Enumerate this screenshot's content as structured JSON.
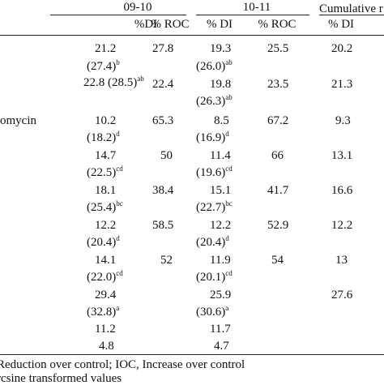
{
  "table": {
    "groups": [
      {
        "label": "09-10"
      },
      {
        "label": "10-11"
      },
      {
        "label": "Cumulative r"
      }
    ],
    "subheaders": [
      "%DI",
      "% ROC",
      "% DI",
      "% ROC",
      "% DI"
    ],
    "row_labels": [
      "omycin"
    ],
    "cells": {
      "r1": {
        "di1": "21.2",
        "roc1": "27.8",
        "di2": "19.3",
        "roc2": "25.5",
        "cum": "20.2"
      },
      "r1t": {
        "di1": "(27.4)",
        "di1_sup": "b",
        "di2": "(26.0)",
        "di2_sup": "ab"
      },
      "r2": {
        "di1": "22.8 (28.5)",
        "di1_sup": "ab",
        "roc1": "22.4",
        "di2": "19.8",
        "roc2": "23.5",
        "cum": "21.3"
      },
      "r2t": {
        "di2": "(26.3)",
        "di2_sup": "ab"
      },
      "r3": {
        "di1": "10.2",
        "roc1": "65.3",
        "di2": "8.5",
        "roc2": "67.2",
        "cum": "9.3"
      },
      "r3t": {
        "di1": "(18.2)",
        "di1_sup": "d",
        "di2": "(16.9)",
        "di2_sup": "d"
      },
      "r4": {
        "di1": "14.7",
        "roc1": "50",
        "di2": "11.4",
        "roc2": "66",
        "cum": "13.1"
      },
      "r4t": {
        "di1": "(22.5)",
        "di1_sup": "cd",
        "di2": "(19.6)",
        "di2_sup": "cd"
      },
      "r5": {
        "di1": "18.1",
        "roc1": "38.4",
        "di2": "15.1",
        "roc2": "41.7",
        "cum": "16.6"
      },
      "r5t": {
        "di1": "(25.4)",
        "di1_sup": "bc",
        "di2": "(22.7)",
        "di2_sup": "bc"
      },
      "r6": {
        "di1": "12.2",
        "roc1": "58.5",
        "di2": "12.2",
        "roc2": "52.9",
        "cum": "12.2"
      },
      "r6t": {
        "di1": "(20.4)",
        "di1_sup": "d",
        "di2": "(20.4)",
        "di2_sup": "d"
      },
      "r7": {
        "di1": "14.1",
        "roc1": "52",
        "di2": "11.9",
        "roc2": "54",
        "cum": "13"
      },
      "r7t": {
        "di1": "(22.0)",
        "di1_sup": "cd",
        "di2": "(20.1)",
        "di2_sup": "cd"
      },
      "r8": {
        "di1": "29.4",
        "di2": "25.9",
        "cum": "27.6"
      },
      "r8t": {
        "di1": "(32.8)",
        "di1_sup": "a",
        "di2": "(30.6)",
        "di2_sup": "a"
      },
      "r9": {
        "di1": "11.2",
        "di2": "11.7"
      },
      "r10": {
        "di1": "4.8",
        "di2": "4.7"
      }
    },
    "footnotes": [
      "Reduction over control; IOC, Increase over control",
      "rcsine transformed values"
    ]
  }
}
